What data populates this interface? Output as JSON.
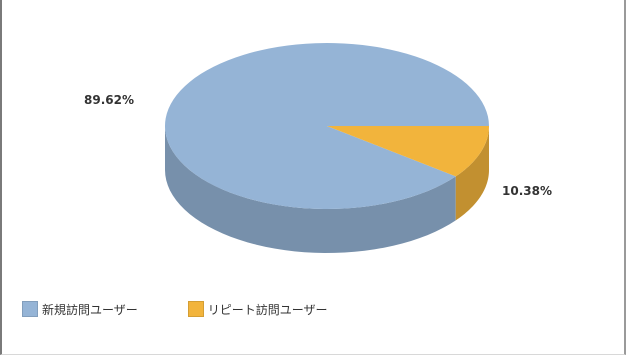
{
  "chart_data": {
    "type": "pie",
    "title": "",
    "three_d": true,
    "legend_position": "bottom-left",
    "categories": [
      "新規訪問ユーザー",
      "リピート訪問ユーザー"
    ],
    "values": [
      89.62,
      10.38
    ],
    "data_labels": [
      "89.62%",
      "10.38%"
    ],
    "colors": [
      "#95b4d6",
      "#f2b43c"
    ]
  }
}
